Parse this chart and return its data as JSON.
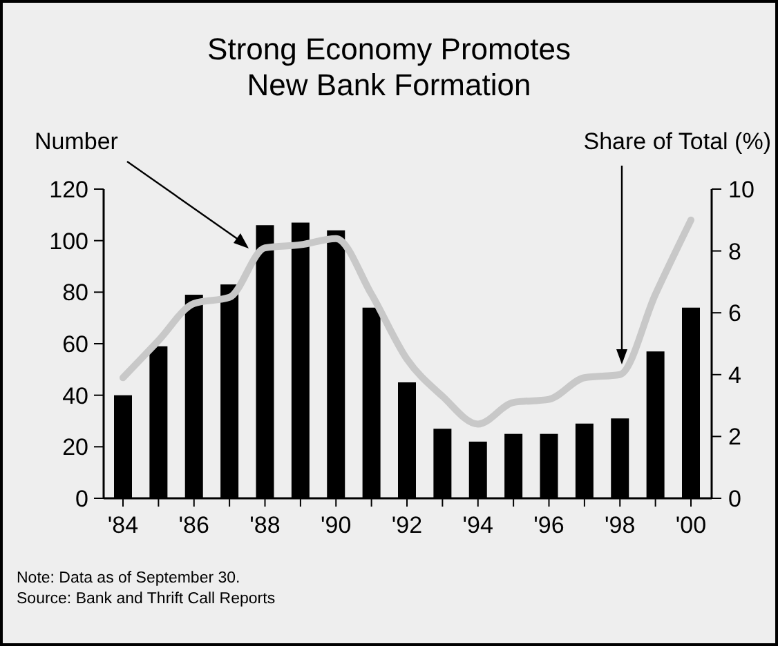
{
  "chart_data": {
    "type": "bar",
    "title": "Strong Economy Promotes\nNew Bank Formation",
    "ylabel": "Number",
    "y2label": "Share of Total (%)",
    "categories": [
      "'84",
      null,
      "'86",
      null,
      "'88",
      null,
      "'90",
      null,
      "'92",
      null,
      "'94",
      null,
      "'96",
      null,
      "'98",
      null,
      "'00"
    ],
    "series": [
      {
        "color": "#000000",
        "values": [
          40,
          59,
          79,
          83,
          106,
          107,
          104,
          74,
          45,
          27,
          22,
          25,
          25,
          29,
          31,
          57,
          74
        ]
      },
      {
        "type": "line",
        "axis": "y2",
        "color": "#c8c8c8",
        "values": [
          3.9,
          5.1,
          6.3,
          6.5,
          8.1,
          8.2,
          8.4,
          6.6,
          4.5,
          3.3,
          2.4,
          3.1,
          3.2,
          3.9,
          4.0,
          6.6,
          9.0
        ]
      }
    ],
    "ylim": [
      0,
      120
    ],
    "yticks": [
      0,
      20,
      40,
      60,
      80,
      100,
      120
    ],
    "y2lim": [
      0,
      10
    ],
    "y2ticks": [
      0,
      2,
      4,
      6,
      8,
      10
    ],
    "annotations": [
      "Note: Data as of September 30.",
      "Source: Bank and Thrift Call Reports"
    ]
  }
}
